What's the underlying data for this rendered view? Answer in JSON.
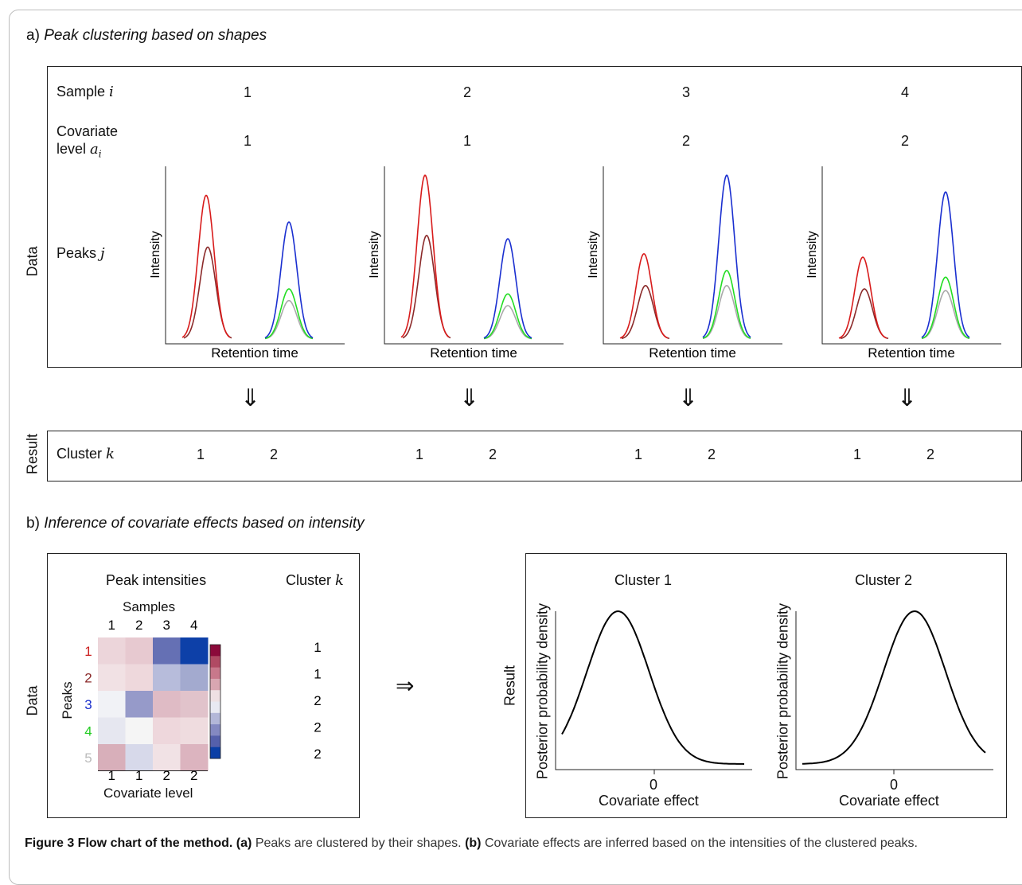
{
  "section_a": {
    "letter": "a)",
    "title": "Peak clustering based on shapes"
  },
  "section_b": {
    "letter": "b)",
    "title": "Inference of covariate effects based on intensity"
  },
  "row_labels": {
    "sample": "Sample",
    "sample_sym": "i",
    "covariate": "Covariate",
    "covariate_level": "level",
    "covariate_sym": "a",
    "covariate_sub": "i",
    "peaks": "Peaks",
    "peaks_sym": "j",
    "cluster": "Cluster",
    "cluster_sym": "k"
  },
  "side_labels": {
    "data": "Data",
    "result": "Result"
  },
  "samples": [
    "1",
    "2",
    "3",
    "4"
  ],
  "covariate_levels": [
    "1",
    "1",
    "2",
    "2"
  ],
  "mini_charts": {
    "ylabel": "Intensity",
    "xlabel": "Retention time",
    "peak_heights": [
      {
        "sample": "1",
        "red": 0.86,
        "darkred": 0.55,
        "blue": 0.7,
        "green": 0.3,
        "gray": 0.23
      },
      {
        "sample": "2",
        "red": 0.98,
        "darkred": 0.62,
        "blue": 0.6,
        "green": 0.27,
        "gray": 0.2
      },
      {
        "sample": "3",
        "red": 0.51,
        "darkred": 0.32,
        "blue": 0.98,
        "green": 0.41,
        "gray": 0.32
      },
      {
        "sample": "4",
        "red": 0.49,
        "darkred": 0.3,
        "blue": 0.88,
        "green": 0.37,
        "gray": 0.29
      }
    ]
  },
  "arrow_down": "⇓",
  "arrow_right": "⇒",
  "cluster_results": [
    [
      "1",
      "2"
    ],
    [
      "1",
      "2"
    ],
    [
      "1",
      "2"
    ],
    [
      "1",
      "2"
    ]
  ],
  "heatmap": {
    "title": "Peak intensities",
    "cluster_title": "Cluster",
    "cluster_sym": "k",
    "samples_label": "Samples",
    "sample_ticks": [
      "1",
      "2",
      "3",
      "4"
    ],
    "peaks_label": "Peaks",
    "peak_ticks": [
      "1",
      "2",
      "3",
      "4",
      "5"
    ],
    "peak_colors": [
      "#cc1f1f",
      "#8b2a2a",
      "#1a2fcc",
      "#22cc22",
      "#bbbbbb"
    ],
    "covariate_label": "Covariate level",
    "covariate_ticks": [
      "1",
      "1",
      "2",
      "2"
    ],
    "clusters": [
      "1",
      "1",
      "2",
      "2",
      "2"
    ],
    "cells": [
      [
        "#ecd5da",
        "#e7c9d0",
        "#6570b4",
        "#0d40a8"
      ],
      [
        "#f1e1e4",
        "#eed8dc",
        "#b7bcdb",
        "#a3aacf"
      ],
      [
        "#f1f2f6",
        "#969ac9",
        "#dfbbc5",
        "#e1c3cb"
      ],
      [
        "#e6e7f0",
        "#f5f5f5",
        "#eed7dc",
        "#efdcdf"
      ],
      [
        "#d8afba",
        "#d7d9ea",
        "#f1e2e5",
        "#dcb4bf"
      ]
    ],
    "colorbar": [
      "#8b0a3a",
      "#b04a63",
      "#c8788b",
      "#d9a6b1",
      "#eee0e3",
      "#e8e9f2",
      "#b3b7d8",
      "#8489c1",
      "#5560ab",
      "#0b3fa6"
    ]
  },
  "posterior": {
    "ylabel": "Posterior probability density",
    "xlabel": "Covariate effect",
    "panels": [
      {
        "title": "Cluster 1",
        "mean": -0.35,
        "sd": 0.3,
        "x_tick": "0"
      },
      {
        "title": "Cluster 2",
        "mean": 0.2,
        "sd": 0.3,
        "x_tick": "0"
      }
    ]
  },
  "caption": {
    "bold": "Figure 3 Flow chart of the method.",
    "a_tag": "(a)",
    "a_text": "Peaks are clustered by their shapes.",
    "b_tag": "(b)",
    "b_text": "Covariate effects are inferred based on the intensities of the clustered peaks."
  }
}
